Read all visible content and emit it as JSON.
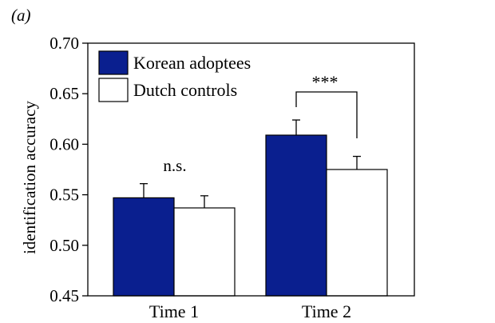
{
  "panel_label": "(a)",
  "colors": {
    "korean": "#0a1f8f",
    "dutch": "#ffffff",
    "axis": "#000000"
  },
  "chart_data": {
    "type": "bar",
    "title": "",
    "xlabel": "",
    "ylabel": "identification accuracy",
    "ylim": [
      0.45,
      0.7
    ],
    "yticks": [
      "0.45",
      "0.50",
      "0.55",
      "0.60",
      "0.65",
      "0.70"
    ],
    "categories": [
      "Time 1",
      "Time 2"
    ],
    "series": [
      {
        "name": "Korean adoptees",
        "values": [
          0.547,
          0.609
        ],
        "errors": [
          0.014,
          0.015
        ]
      },
      {
        "name": "Dutch controls",
        "values": [
          0.537,
          0.575
        ],
        "errors": [
          0.012,
          0.013
        ]
      }
    ],
    "annotations": [
      "n.s.",
      "***"
    ],
    "legend": "top-left",
    "grid": false
  }
}
